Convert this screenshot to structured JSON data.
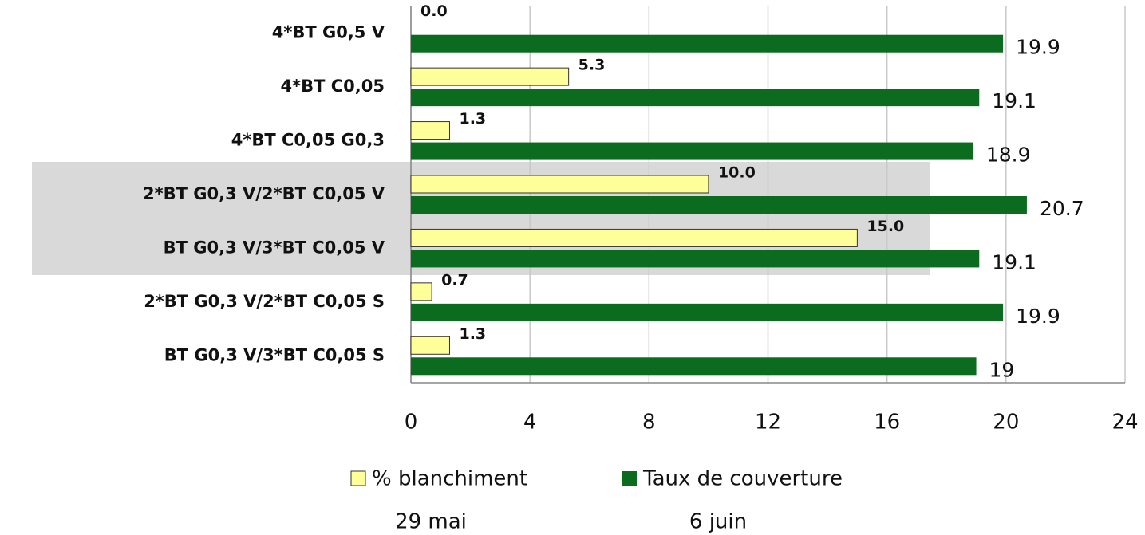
{
  "chart_data": {
    "type": "bar",
    "orientation": "horizontal",
    "categories": [
      "4*BT G0,5 V",
      "4*BT C0,05",
      "4*BT C0,05 G0,3",
      "2*BT G0,3 V/2*BT C0,05 V",
      "BT G0,3 V/3*BT C0,05 V",
      "2*BT G0,3 V/2*BT C0,05 S",
      "BT G0,3 V/3*BT C0,05 S"
    ],
    "series": [
      {
        "name": "% blanchiment",
        "date": "29 mai",
        "color": "#ffff99",
        "values": [
          0,
          5.3,
          1.3,
          10,
          15,
          0.7,
          1.3
        ],
        "value_labels": [
          "0.0",
          "5.3",
          "1.3",
          "10.0",
          "15.0",
          "0.7",
          "1.3"
        ]
      },
      {
        "name": "Taux de couverture",
        "date": "6 juin",
        "color": "#0b6b1f",
        "values": [
          19.9,
          19.1,
          18.9,
          20.7,
          19.1,
          19.9,
          19
        ]
      }
    ],
    "xlim": [
      0,
      24
    ],
    "xticks": [
      0,
      4,
      8,
      12,
      16,
      20,
      24
    ],
    "grid": true
  }
}
